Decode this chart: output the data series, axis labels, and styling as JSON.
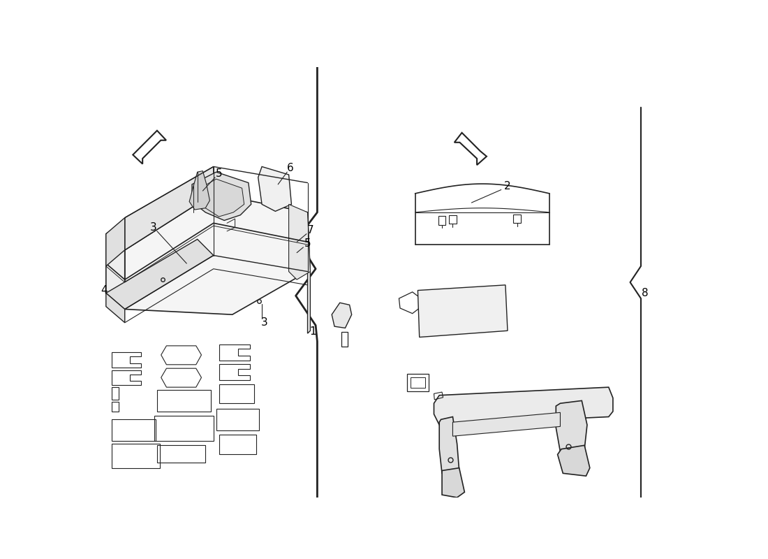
{
  "bg_color": "#ffffff",
  "line_color": "#222222",
  "fig_width": 11.0,
  "fig_height": 8.0,
  "dpi": 100
}
